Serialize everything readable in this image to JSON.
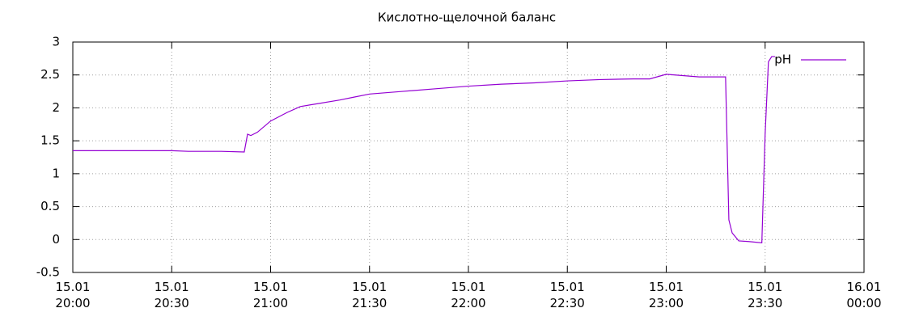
{
  "chart_data": {
    "type": "line",
    "title": "Кислотно-щелочной баланс",
    "x": [
      "15.01 20:00",
      "15.01 20:10",
      "15.01 20:20",
      "15.01 20:30",
      "15.01 20:35",
      "15.01 20:40",
      "15.01 20:45",
      "15.01 20:52",
      "15.01 20:53",
      "15.01 20:54",
      "15.01 20:56",
      "15.01 21:00",
      "15.01 21:05",
      "15.01 21:09",
      "15.01 21:15",
      "15.01 21:21",
      "15.01 21:25",
      "15.01 21:30",
      "15.01 21:40",
      "15.01 21:50",
      "15.01 22:00",
      "15.01 22:10",
      "15.01 22:20",
      "15.01 22:30",
      "15.01 22:40",
      "15.01 22:50",
      "15.01 22:55",
      "15.01 23:00",
      "15.01 23:05",
      "15.01 23:10",
      "15.01 23:18",
      "15.01 23:19",
      "15.01 23:20",
      "15.01 23:22",
      "15.01 23:25",
      "15.01 23:29",
      "15.01 23:30",
      "15.01 23:31",
      "15.01 23:32",
      "15.01 23:33"
    ],
    "series": [
      {
        "name": "pH",
        "color": "#9400d3",
        "values": [
          1.35,
          1.35,
          1.35,
          1.35,
          1.34,
          1.34,
          1.34,
          1.33,
          1.6,
          1.58,
          1.63,
          1.8,
          1.93,
          2.02,
          2.07,
          2.12,
          2.16,
          2.21,
          2.25,
          2.29,
          2.33,
          2.36,
          2.38,
          2.41,
          2.43,
          2.44,
          2.44,
          2.51,
          2.49,
          2.47,
          2.47,
          0.3,
          0.1,
          -0.02,
          -0.03,
          -0.05,
          1.6,
          2.7,
          2.78,
          2.78
        ]
      }
    ],
    "xlim": [
      "15.01 20:00",
      "16.01 00:00"
    ],
    "xticks": [
      "15.01 20:00",
      "15.01 20:30",
      "15.01 21:00",
      "15.01 21:30",
      "15.01 22:00",
      "15.01 22:30",
      "15.01 23:00",
      "15.01 23:30",
      "16.01 00:00"
    ],
    "ylim": [
      -0.5,
      3
    ],
    "yticks": [
      -0.5,
      0,
      0.5,
      1,
      1.5,
      2,
      2.5,
      3
    ],
    "grid": true,
    "legend": "top-right"
  }
}
